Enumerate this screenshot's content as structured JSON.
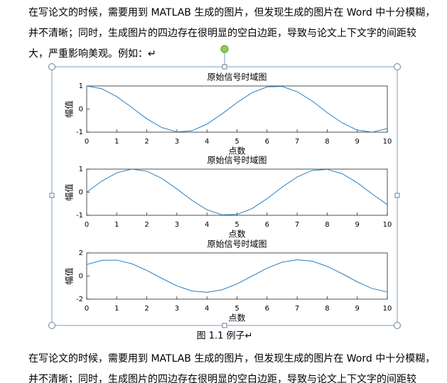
{
  "paragraphs": [
    [
      "在写论文的时候，需要用到 MATLAB 生成的图片，但发现生成的图片在 Word 中十分模糊，",
      "并不清晰；同时，生成图片的四边存在很明显的空白边距，导致与论文上下文字的间距较",
      "大，严重影响美观。例如：↵"
    ]
  ],
  "figure": {
    "charts": [
      {
        "type": "line",
        "title": "原始信号时域图",
        "x_label": "点数",
        "y_label": "幅值",
        "color": "#2a7fc1",
        "x": [
          0,
          0.5,
          1,
          1.5,
          2,
          2.5,
          3,
          3.5,
          4,
          4.5,
          5,
          5.5,
          6,
          6.5,
          7,
          7.5,
          8,
          8.5,
          9,
          9.5,
          10
        ],
        "values": [
          1,
          0.88,
          0.54,
          0.07,
          -0.42,
          -0.8,
          -0.99,
          -0.94,
          -0.65,
          -0.21,
          0.28,
          0.71,
          0.96,
          0.98,
          0.75,
          0.35,
          -0.15,
          -0.6,
          -0.91,
          -1.0,
          -0.84
        ],
        "xlim": [
          0,
          10
        ],
        "ylim": [
          -1,
          1
        ],
        "xticks": [
          0,
          1,
          2,
          3,
          4,
          5,
          6,
          7,
          8,
          9,
          10
        ],
        "yticks": [
          -1,
          0,
          1
        ]
      },
      {
        "type": "line",
        "title": "原始信号时域图",
        "x_label": "点数",
        "y_label": "幅值",
        "color": "#2a7fc1",
        "x": [
          0,
          0.5,
          1,
          1.5,
          2,
          2.5,
          3,
          3.5,
          4,
          4.5,
          5,
          5.5,
          6,
          6.5,
          7,
          7.5,
          8,
          8.5,
          9,
          9.5,
          10
        ],
        "values": [
          0,
          0.48,
          0.84,
          1.0,
          0.91,
          0.6,
          0.14,
          -0.35,
          -0.76,
          -0.98,
          -0.96,
          -0.71,
          -0.28,
          0.22,
          0.66,
          0.94,
          0.99,
          0.8,
          0.41,
          -0.08,
          -0.54
        ],
        "xlim": [
          0,
          10
        ],
        "ylim": [
          -1,
          1
        ],
        "xticks": [
          0,
          1,
          2,
          3,
          4,
          5,
          6,
          7,
          8,
          9,
          10
        ],
        "yticks": [
          -1,
          0,
          1
        ]
      },
      {
        "type": "line",
        "title": "原始信号时域图",
        "x_label": "点数",
        "y_label": "幅值",
        "color": "#2a7fc1",
        "x": [
          0,
          0.5,
          1,
          1.5,
          2,
          2.5,
          3,
          3.5,
          4,
          4.5,
          5,
          5.5,
          6,
          6.5,
          7,
          7.5,
          8,
          8.5,
          9,
          9.5,
          10
        ],
        "values": [
          1,
          1.36,
          1.38,
          1.07,
          0.49,
          -0.2,
          -0.85,
          -1.29,
          -1.41,
          -1.19,
          -0.68,
          0,
          0.68,
          1.2,
          1.41,
          1.29,
          0.84,
          0.2,
          -0.5,
          -1.08,
          -1.38
        ],
        "xlim": [
          0,
          10
        ],
        "ylim": [
          -2,
          2
        ],
        "xticks": [
          0,
          1,
          2,
          3,
          4,
          5,
          6,
          7,
          8,
          9,
          10
        ],
        "yticks": [
          -2,
          0,
          2
        ]
      }
    ],
    "caption": "图 1.1  例子↵"
  },
  "paragraphs_after": [
    [
      "在写论文的时候，需要用到 MATLAB 生成的图片，但发现生成的图片在 Word 中十分模糊，",
      "并不清晰；同时，生成图片的四边存在很明显的空白边距，导致与论文上下文字的间距较"
    ]
  ]
}
